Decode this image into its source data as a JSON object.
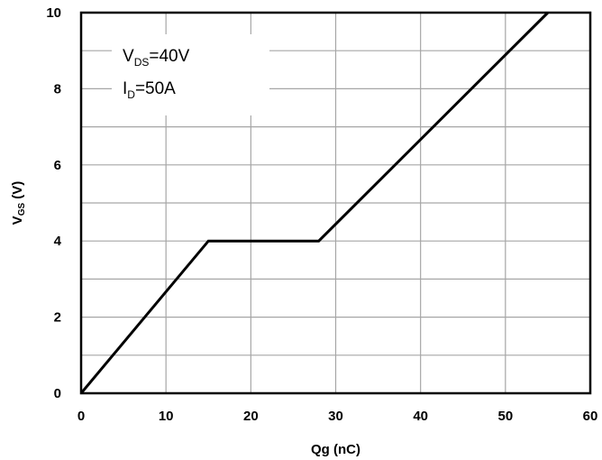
{
  "chart_data": {
    "type": "line",
    "xlabel": "Qg (nC)",
    "ylabel_main": "V",
    "ylabel_sub": "GS",
    "ylabel_unit": " (V)",
    "xlim": [
      0,
      60
    ],
    "ylim": [
      0,
      10
    ],
    "x_ticks": [
      "0",
      "10",
      "20",
      "30",
      "40",
      "50",
      "60"
    ],
    "y_ticks": [
      "0",
      "2",
      "4",
      "6",
      "8",
      "10"
    ],
    "grid": true,
    "x_minor_step": 10,
    "y_minor_step": 1,
    "legend": {
      "placement": "top-left",
      "lines": [
        {
          "main": "V",
          "sub": "DS",
          "rest": "=40V"
        },
        {
          "main": "I",
          "sub": "D",
          "rest": "=50A"
        }
      ]
    },
    "series": [
      {
        "color": "#000000",
        "points": [
          [
            0,
            0
          ],
          [
            15,
            4
          ],
          [
            28,
            4
          ],
          [
            55,
            10
          ]
        ]
      }
    ]
  }
}
